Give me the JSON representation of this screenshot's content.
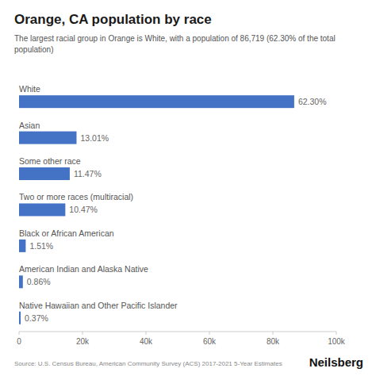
{
  "chart_data": {
    "type": "bar",
    "orientation": "horizontal",
    "title": "Orange, CA population by race",
    "subtitle": "The largest racial group in Orange is White, with a population of 86,719 (62.30% of the total\npopulation)",
    "categories": [
      "White",
      "Asian",
      "Some other race",
      "Two or more races (multiracial)",
      "Black or African American",
      "American Indian and Alaska Native",
      "Native Hawaiian and Other Pacific Islander"
    ],
    "values": [
      86719,
      18121,
      15982,
      14589,
      2103,
      1198,
      515
    ],
    "percentage_labels": [
      "62.30%",
      "13.01%",
      "11.47%",
      "10.47%",
      "1.51%",
      "0.86%",
      "0.37%"
    ],
    "color": "#4472C4",
    "xlim": [
      0,
      100000
    ],
    "xticks": [
      0,
      {
        "value": 20000,
        "label": "20k"
      },
      {
        "value": 40000,
        "label": "40k"
      },
      {
        "value": 60000,
        "label": "60k"
      },
      {
        "value": 80000,
        "label": "80k"
      },
      {
        "value": 100000,
        "label": "100k"
      }
    ],
    "grid": false,
    "source": "Source: U.S. Census Bureau, American Community Survey (ACS) 2017-2021 5-Year Estimates",
    "brand": "Neilsberg"
  }
}
